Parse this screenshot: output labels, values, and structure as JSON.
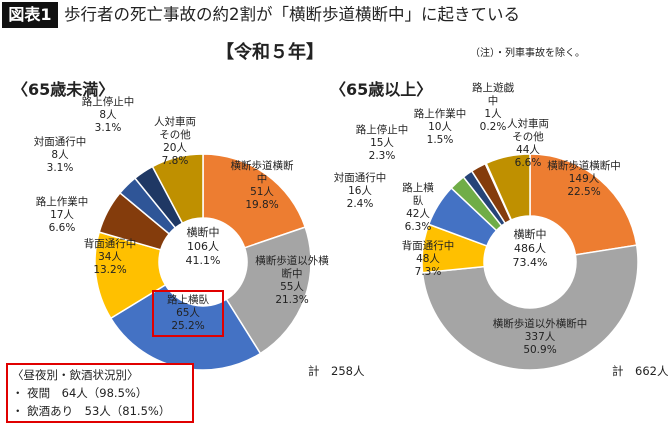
{
  "header": {
    "badge": "図表1",
    "title": "歩行者の死亡事故の約2割が「横断歩道横断中」に起きている",
    "subtitle": "【令和５年】",
    "note": "（注）・列車事故を除く。"
  },
  "chart_data": [
    {
      "type": "pie",
      "donut": true,
      "title": "〈65歳未満〉",
      "categories": [
        "横断歩道横断中",
        "横断歩道以外横断中",
        "路上横臥",
        "背面通行中",
        "路上作業中",
        "対面通行中",
        "路上停止中",
        "人対車両その他"
      ],
      "values": [
        51,
        55,
        65,
        34,
        17,
        8,
        8,
        20
      ],
      "value_labels": [
        "51人",
        "55人",
        "65人",
        "34人",
        "17人",
        "8人",
        "8人",
        "20人"
      ],
      "percent_labels": [
        "19.8%",
        "21.3%",
        "25.2%",
        "13.2%",
        "6.6%",
        "3.1%",
        "3.1%",
        "7.8%"
      ],
      "colors": [
        "#ed7d31",
        "#a5a5a5",
        "#4472c4",
        "#ffc000",
        "#843c0c",
        "#2f5597",
        "#1f3864",
        "#bf9000"
      ],
      "center_label": {
        "name": "横断中",
        "value_label": "106人",
        "percent_label": "41.1%"
      },
      "total_label": "計　258人"
    },
    {
      "type": "pie",
      "donut": true,
      "title": "〈65歳以上〉",
      "categories": [
        "横断歩道横断中",
        "横断歩道以外横断中",
        "背面通行中",
        "路上横臥",
        "対面通行中",
        "路上作業中",
        "路上停止中",
        "路上遊戯中",
        "人対車両その他"
      ],
      "values": [
        149,
        337,
        48,
        42,
        16,
        10,
        15,
        1,
        44
      ],
      "value_labels": [
        "149人",
        "337人",
        "48人",
        "42人",
        "16人",
        "10人",
        "15人",
        "1人",
        "44人"
      ],
      "percent_labels": [
        "22.5%",
        "50.9%",
        "7.3%",
        "6.3%",
        "2.4%",
        "1.5%",
        "2.3%",
        "0.2%",
        "6.6%"
      ],
      "colors": [
        "#ed7d31",
        "#a5a5a5",
        "#ffc000",
        "#4472c4",
        "#70ad47",
        "#264478",
        "#843c0c",
        "#636363",
        "#bf9000"
      ],
      "center_label": {
        "name": "横断中",
        "value_label": "486人",
        "percent_label": "73.4%"
      },
      "total_label": "計　662人"
    }
  ],
  "annotation": {
    "title": "〈昼夜別・飲酒状況別〉",
    "lines": [
      "・ 夜間　64人（98.5%）",
      "・ 飲酒あり　53人（81.5%）"
    ]
  }
}
